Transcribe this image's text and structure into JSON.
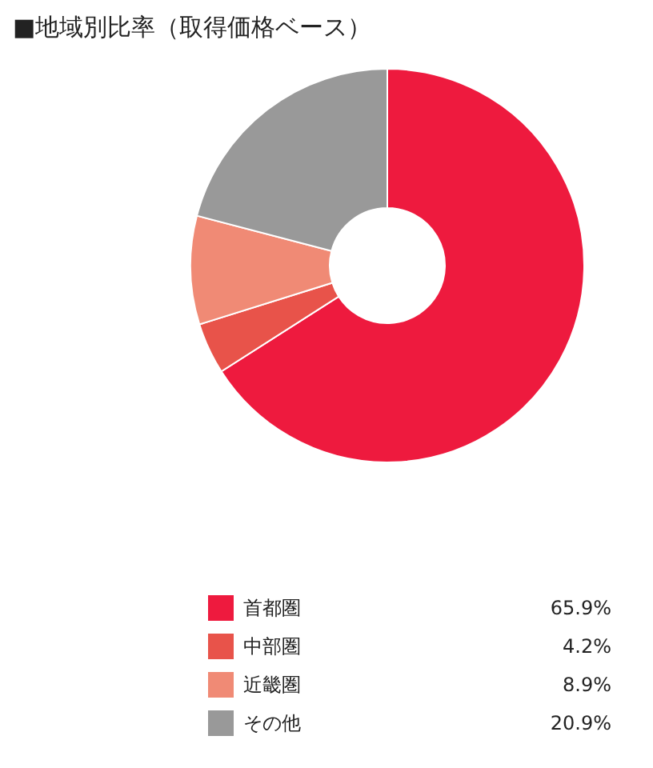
{
  "chart_data": {
    "type": "donut",
    "title": "■地域別比率（取得価格ベース）",
    "categories": [
      "首都圏",
      "中部圏",
      "近畿圏",
      "その他"
    ],
    "values": [
      65.9,
      4.2,
      8.9,
      20.9
    ],
    "value_labels": [
      "65.9%",
      "4.2%",
      "8.9%",
      "20.9%"
    ],
    "colors": [
      "#ee1a3e",
      "#e8534a",
      "#f08a75",
      "#999999"
    ],
    "legend": "bottom"
  }
}
